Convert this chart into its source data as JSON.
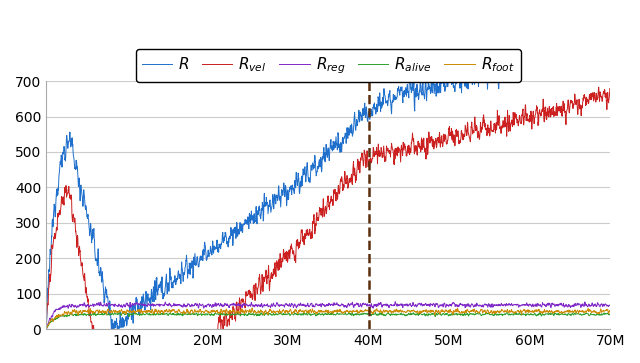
{
  "xlim": [
    0,
    70000000
  ],
  "ylim": [
    0,
    700
  ],
  "x_ticks": [
    0,
    10000000,
    20000000,
    30000000,
    40000000,
    50000000,
    60000000,
    70000000
  ],
  "x_tick_labels": [
    "",
    "10M",
    "20M",
    "30M",
    "40M",
    "50M",
    "60M",
    "70M"
  ],
  "y_ticks": [
    0,
    100,
    200,
    300,
    400,
    500,
    600,
    700
  ],
  "vline_x": 40000000,
  "legend_labels": [
    "$R$",
    "$R_{vel}$",
    "$R_{reg}$",
    "$R_{alive}$",
    "$R_{foot}$"
  ],
  "colors": [
    "#1f6fcc",
    "#cc1f1f",
    "#7f28c8",
    "#2ca02c",
    "#cc8800"
  ],
  "vline_color": "#5a2d0c",
  "grid_color": "#cccccc",
  "background_color": "#ffffff",
  "seed": 12345,
  "n_points": 2000
}
